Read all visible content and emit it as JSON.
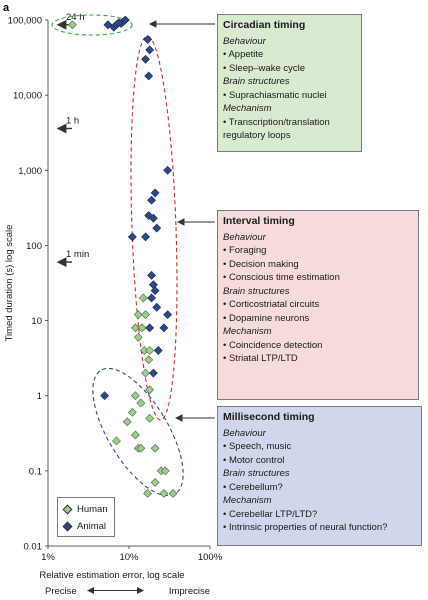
{
  "panel_label": "a",
  "chart_data": {
    "type": "scatter",
    "x_scale": "log",
    "y_scale": "log",
    "xlim": [
      0.01,
      1
    ],
    "ylim": [
      0.01,
      100000
    ],
    "xlabel": "Relative estimation error, log scale",
    "ylabel": "Timed duration (s) log scale",
    "x_ticks": [
      {
        "value": 0.01,
        "label": "1%"
      },
      {
        "value": 0.1,
        "label": "10%"
      },
      {
        "value": 1,
        "label": "100%"
      }
    ],
    "y_ticks": [
      {
        "value": 0.01,
        "label": "0.01"
      },
      {
        "value": 0.1,
        "label": "0.1"
      },
      {
        "value": 1,
        "label": "1"
      },
      {
        "value": 10,
        "label": "10"
      },
      {
        "value": 100,
        "label": "100"
      },
      {
        "value": 1000,
        "label": "1,000"
      },
      {
        "value": 10000,
        "label": "10,000"
      },
      {
        "value": 100000,
        "label": "100,000"
      }
    ],
    "reference_marks": [
      {
        "label": "24 h",
        "value": 86400
      },
      {
        "label": "1 h",
        "value": 3600
      },
      {
        "label": "1 min",
        "value": 60
      }
    ],
    "precision_axis": {
      "left": "Precise",
      "right": "Imprecise"
    },
    "series": [
      {
        "name": "Human",
        "color": "#9dcc8e",
        "points": [
          [
            0.02,
            86400
          ],
          [
            0.15,
            20
          ],
          [
            0.13,
            12
          ],
          [
            0.16,
            12
          ],
          [
            0.12,
            8
          ],
          [
            0.145,
            8
          ],
          [
            0.13,
            6
          ],
          [
            0.155,
            4
          ],
          [
            0.18,
            4
          ],
          [
            0.175,
            3
          ],
          [
            0.16,
            2
          ],
          [
            0.18,
            1.2
          ],
          [
            0.12,
            1
          ],
          [
            0.14,
            0.8
          ],
          [
            0.11,
            0.6
          ],
          [
            0.18,
            0.5
          ],
          [
            0.095,
            0.45
          ],
          [
            0.12,
            0.3
          ],
          [
            0.07,
            0.25
          ],
          [
            0.13,
            0.2
          ],
          [
            0.14,
            0.2
          ],
          [
            0.21,
            0.2
          ],
          [
            0.25,
            0.1
          ],
          [
            0.28,
            0.1
          ],
          [
            0.21,
            0.07
          ],
          [
            0.17,
            0.05
          ],
          [
            0.27,
            0.05
          ],
          [
            0.35,
            0.05
          ]
        ]
      },
      {
        "name": "Animal",
        "color": "#2a4a86",
        "points": [
          [
            0.055,
            86400
          ],
          [
            0.065,
            80000
          ],
          [
            0.07,
            86400
          ],
          [
            0.08,
            90000
          ],
          [
            0.085,
            95000
          ],
          [
            0.09,
            100000
          ],
          [
            0.075,
            92000
          ],
          [
            0.17,
            55000
          ],
          [
            0.18,
            40000
          ],
          [
            0.16,
            30000
          ],
          [
            0.175,
            18000
          ],
          [
            0.3,
            1000
          ],
          [
            0.21,
            500
          ],
          [
            0.19,
            400
          ],
          [
            0.175,
            250
          ],
          [
            0.2,
            230
          ],
          [
            0.22,
            170
          ],
          [
            0.11,
            130
          ],
          [
            0.16,
            130
          ],
          [
            0.19,
            40
          ],
          [
            0.2,
            30
          ],
          [
            0.21,
            25
          ],
          [
            0.19,
            20
          ],
          [
            0.22,
            15
          ],
          [
            0.3,
            12
          ],
          [
            0.18,
            8
          ],
          [
            0.27,
            8
          ],
          [
            0.23,
            4
          ],
          [
            0.2,
            2
          ],
          [
            0.05,
            1
          ]
        ]
      }
    ],
    "ellipses": [
      {
        "name": "Circadian timing",
        "color": "#3aa050",
        "cx": 0.045,
        "cy": 88000
      },
      {
        "name": "Interval timing",
        "color": "#cc2b2b",
        "cx": 0.2,
        "cy": 300
      },
      {
        "name": "Millisecond timing",
        "color": "#2a4a86",
        "cx": 0.15,
        "cy": 0.3
      }
    ]
  },
  "boxes": {
    "circadian": {
      "title": "Circadian timing",
      "behaviour_label": "Behaviour",
      "behaviour": [
        "Appetite",
        "Sleep–wake cycle"
      ],
      "brain_label": "Brain structures",
      "brain": [
        "Suprachiasmatic nuclei"
      ],
      "mechanism_label": "Mechanism",
      "mechanism": [
        "Transcription/translation regulatory loops"
      ],
      "color": "#d8ead0"
    },
    "interval": {
      "title": "Interval timing",
      "behaviour_label": "Behaviour",
      "behaviour": [
        "Foraging",
        "Decision making",
        "Conscious time estimation"
      ],
      "brain_label": "Brain structures",
      "brain": [
        "Corticostriatal circuits",
        "Dopamine neurons"
      ],
      "mechanism_label": "Mechanism",
      "mechanism": [
        "Coincidence detection",
        "Striatal LTP/LTD"
      ],
      "color": "#f5dcdb"
    },
    "millisecond": {
      "title": "Millisecond timing",
      "behaviour_label": "Behaviour",
      "behaviour": [
        "Speech, music",
        "Motor control"
      ],
      "brain_label": "Brain structures",
      "brain": [
        "Cerebellum?"
      ],
      "mechanism_label": "Mechanism",
      "mechanism": [
        "Cerebellar LTP/LTD?",
        "Intrinsic properties of neural function?"
      ],
      "color": "#d0d7ec"
    }
  },
  "legend": {
    "human": "Human",
    "animal": "Animal"
  }
}
